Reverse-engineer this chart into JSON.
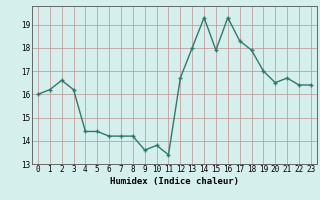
{
  "x": [
    0,
    1,
    2,
    3,
    4,
    5,
    6,
    7,
    8,
    9,
    10,
    11,
    12,
    13,
    14,
    15,
    16,
    17,
    18,
    19,
    20,
    21,
    22,
    23
  ],
  "y": [
    16.0,
    16.2,
    16.6,
    16.2,
    14.4,
    14.4,
    14.2,
    14.2,
    14.2,
    13.6,
    13.8,
    13.4,
    16.7,
    18.0,
    19.3,
    17.9,
    19.3,
    18.3,
    17.9,
    17.0,
    16.5,
    16.7,
    16.4,
    16.4
  ],
  "xlabel": "Humidex (Indice chaleur)",
  "xlim": [
    -0.5,
    23.5
  ],
  "ylim": [
    13.0,
    19.8
  ],
  "yticks": [
    13,
    14,
    15,
    16,
    17,
    18,
    19
  ],
  "xticks": [
    0,
    1,
    2,
    3,
    4,
    5,
    6,
    7,
    8,
    9,
    10,
    11,
    12,
    13,
    14,
    15,
    16,
    17,
    18,
    19,
    20,
    21,
    22,
    23
  ],
  "line_color": "#2d7a6a",
  "bg_color": "#d5f0ec",
  "grid_color": "#c4a0a0"
}
